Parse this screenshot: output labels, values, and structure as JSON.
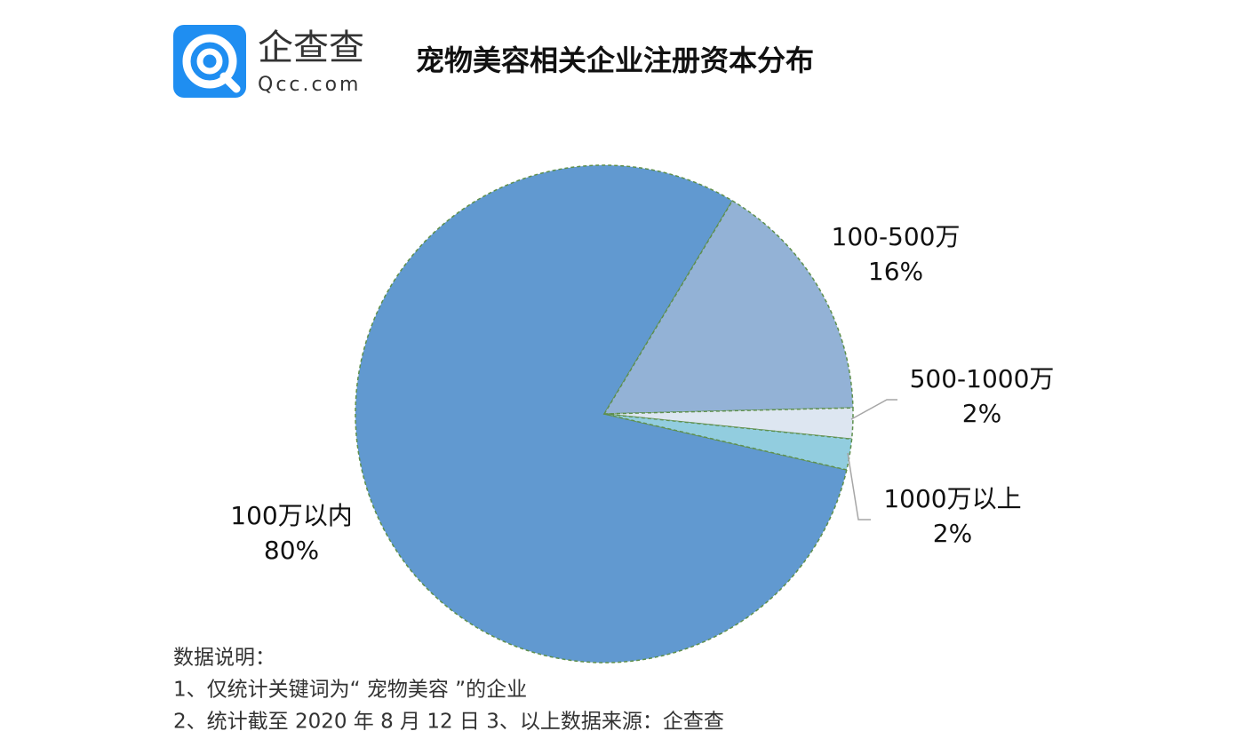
{
  "logo": {
    "name": "企查查",
    "site": "Qcc.com"
  },
  "chart_data": {
    "type": "pie",
    "title": "宠物美容相关企业注册资本分布",
    "categories": [
      "100万以内",
      "100-500万",
      "500-1000万",
      "1000万以上"
    ],
    "values": [
      80,
      16,
      2,
      2
    ],
    "value_labels": [
      "80%",
      "16%",
      "2%",
      "2%"
    ],
    "colors": [
      "#6199d0",
      "#93b2d6",
      "#dde6f1",
      "#92cddf"
    ]
  },
  "notes": [
    "数据说明：",
    "1、仅统计关键词为“ 宠物美容 ”的企业",
    "2、统计截至 2020 年 8 月 12 日  3、以上数据来源：企查查"
  ]
}
